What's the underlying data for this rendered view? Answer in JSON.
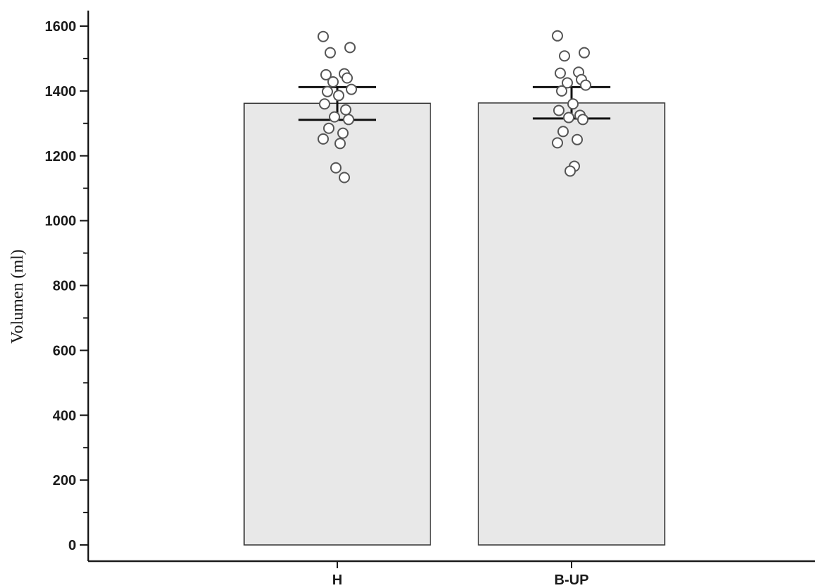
{
  "chart_data": {
    "type": "bar",
    "title": "",
    "xlabel": "",
    "ylabel": "Volumen (ml)",
    "ylim": [
      0,
      1600
    ],
    "yticks": [
      0,
      200,
      400,
      600,
      800,
      1000,
      1200,
      1400,
      1600
    ],
    "yminor_step": 100,
    "grid": false,
    "legend": "none",
    "categories": [
      "H",
      "B-UP"
    ],
    "values": [
      1362,
      1363
    ],
    "error_bars": [
      {
        "lower": 1311,
        "upper": 1412
      },
      {
        "lower": 1315,
        "upper": 1412
      }
    ],
    "points": [
      [
        1568,
        1534,
        1518,
        1453,
        1450,
        1440,
        1428,
        1405,
        1398,
        1386,
        1360,
        1342,
        1320,
        1312,
        1285,
        1270,
        1252,
        1238,
        1163,
        1133
      ],
      [
        1570,
        1518,
        1508,
        1458,
        1455,
        1435,
        1425,
        1418,
        1400,
        1360,
        1340,
        1325,
        1318,
        1312,
        1275,
        1250,
        1240,
        1168,
        1153
      ]
    ],
    "colors": {
      "bar_fill": "#e8e8e8",
      "bar_stroke": "#333333",
      "axis": "#1a1a1a",
      "error_bar": "#111111",
      "point_fill": "#ffffff",
      "point_stroke": "#555555"
    }
  }
}
